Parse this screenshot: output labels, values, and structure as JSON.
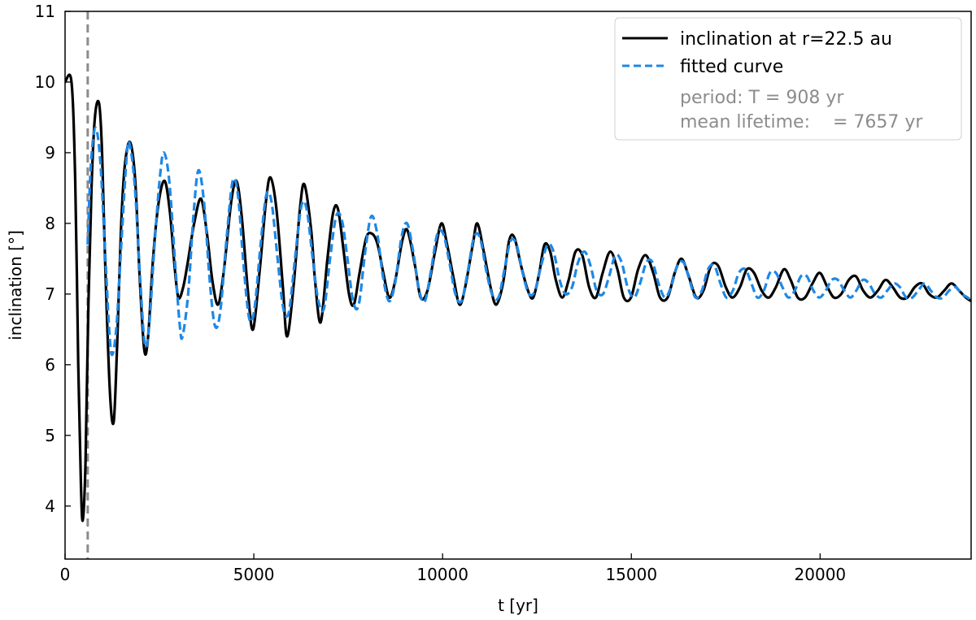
{
  "chart_data": {
    "type": "line",
    "xlabel": "t [yr]",
    "ylabel": "inclination [°]",
    "xlim": [
      0,
      24000
    ],
    "ylim": [
      3.25,
      11
    ],
    "xticks": [
      0,
      5000,
      10000,
      15000,
      20000
    ],
    "yticks": [
      4,
      5,
      6,
      7,
      8,
      9,
      10,
      11
    ],
    "grid": false,
    "legend_position": "top-right",
    "vline": {
      "x": 600,
      "color": "#8c8c8c",
      "style": "dashed"
    },
    "series": [
      {
        "name": "inclination at r=22.5 au",
        "color": "#000000",
        "style": "solid",
        "points": [
          [
            0,
            10.0
          ],
          [
            170,
            10.0
          ],
          [
            270,
            8.6
          ],
          [
            350,
            6.0
          ],
          [
            420,
            4.3
          ],
          [
            470,
            3.8
          ],
          [
            540,
            4.6
          ],
          [
            620,
            6.9
          ],
          [
            700,
            8.5
          ],
          [
            790,
            9.5
          ],
          [
            900,
            9.7
          ],
          [
            980,
            9.0
          ],
          [
            1070,
            7.3
          ],
          [
            1190,
            5.6
          ],
          [
            1290,
            5.2
          ],
          [
            1380,
            6.3
          ],
          [
            1480,
            7.9
          ],
          [
            1580,
            8.8
          ],
          [
            1720,
            9.15
          ],
          [
            1860,
            8.6
          ],
          [
            1980,
            7.2
          ],
          [
            2100,
            6.2
          ],
          [
            2200,
            6.4
          ],
          [
            2330,
            7.5
          ],
          [
            2480,
            8.3
          ],
          [
            2640,
            8.6
          ],
          [
            2780,
            8.15
          ],
          [
            2900,
            7.4
          ],
          [
            3000,
            6.95
          ],
          [
            3130,
            7.1
          ],
          [
            3250,
            7.45
          ],
          [
            3420,
            8.0
          ],
          [
            3600,
            8.35
          ],
          [
            3760,
            7.85
          ],
          [
            3900,
            7.2
          ],
          [
            4050,
            6.85
          ],
          [
            4200,
            7.3
          ],
          [
            4400,
            8.3
          ],
          [
            4540,
            8.6
          ],
          [
            4680,
            8.1
          ],
          [
            4850,
            7.0
          ],
          [
            4980,
            6.5
          ],
          [
            5150,
            7.3
          ],
          [
            5320,
            8.3
          ],
          [
            5440,
            8.65
          ],
          [
            5600,
            8.2
          ],
          [
            5770,
            7.1
          ],
          [
            5880,
            6.4
          ],
          [
            6050,
            7.1
          ],
          [
            6220,
            8.2
          ],
          [
            6340,
            8.55
          ],
          [
            6520,
            7.9
          ],
          [
            6620,
            7.2
          ],
          [
            6770,
            6.6
          ],
          [
            6950,
            7.5
          ],
          [
            7100,
            8.15
          ],
          [
            7230,
            8.2
          ],
          [
            7380,
            7.6
          ],
          [
            7520,
            7.0
          ],
          [
            7650,
            6.85
          ],
          [
            7800,
            7.3
          ],
          [
            7980,
            7.8
          ],
          [
            8140,
            7.85
          ],
          [
            8280,
            7.7
          ],
          [
            8430,
            7.3
          ],
          [
            8590,
            6.95
          ],
          [
            8750,
            7.2
          ],
          [
            8930,
            7.75
          ],
          [
            9070,
            7.9
          ],
          [
            9270,
            7.4
          ],
          [
            9420,
            6.95
          ],
          [
            9600,
            7.05
          ],
          [
            9800,
            7.6
          ],
          [
            9970,
            8.0
          ],
          [
            10120,
            7.7
          ],
          [
            10300,
            7.2
          ],
          [
            10450,
            6.85
          ],
          [
            10600,
            7.1
          ],
          [
            10800,
            7.7
          ],
          [
            10920,
            8.0
          ],
          [
            11090,
            7.6
          ],
          [
            11270,
            7.1
          ],
          [
            11420,
            6.85
          ],
          [
            11600,
            7.15
          ],
          [
            11760,
            7.75
          ],
          [
            11900,
            7.8
          ],
          [
            12080,
            7.4
          ],
          [
            12260,
            7.05
          ],
          [
            12400,
            6.95
          ],
          [
            12560,
            7.3
          ],
          [
            12700,
            7.7
          ],
          [
            12850,
            7.6
          ],
          [
            13000,
            7.2
          ],
          [
            13170,
            6.95
          ],
          [
            13340,
            7.2
          ],
          [
            13520,
            7.6
          ],
          [
            13700,
            7.55
          ],
          [
            13880,
            7.1
          ],
          [
            14060,
            6.95
          ],
          [
            14240,
            7.3
          ],
          [
            14440,
            7.6
          ],
          [
            14630,
            7.35
          ],
          [
            14800,
            6.95
          ],
          [
            14990,
            6.95
          ],
          [
            15180,
            7.35
          ],
          [
            15380,
            7.55
          ],
          [
            15580,
            7.3
          ],
          [
            15760,
            6.95
          ],
          [
            15960,
            6.95
          ],
          [
            16150,
            7.3
          ],
          [
            16330,
            7.5
          ],
          [
            16520,
            7.25
          ],
          [
            16720,
            6.95
          ],
          [
            16910,
            7.05
          ],
          [
            17110,
            7.4
          ],
          [
            17300,
            7.4
          ],
          [
            17500,
            7.1
          ],
          [
            17680,
            6.95
          ],
          [
            17880,
            7.1
          ],
          [
            18060,
            7.35
          ],
          [
            18250,
            7.3
          ],
          [
            18450,
            7.05
          ],
          [
            18640,
            6.95
          ],
          [
            18830,
            7.1
          ],
          [
            19040,
            7.35
          ],
          [
            19220,
            7.2
          ],
          [
            19410,
            6.95
          ],
          [
            19600,
            6.95
          ],
          [
            19800,
            7.15
          ],
          [
            19990,
            7.3
          ],
          [
            20190,
            7.1
          ],
          [
            20370,
            6.95
          ],
          [
            20560,
            7.0
          ],
          [
            20760,
            7.2
          ],
          [
            20950,
            7.25
          ],
          [
            21140,
            7.05
          ],
          [
            21330,
            6.95
          ],
          [
            21530,
            7.05
          ],
          [
            21730,
            7.2
          ],
          [
            21920,
            7.1
          ],
          [
            22120,
            6.95
          ],
          [
            22310,
            6.95
          ],
          [
            22510,
            7.1
          ],
          [
            22700,
            7.15
          ],
          [
            22890,
            7.0
          ],
          [
            23090,
            6.95
          ],
          [
            23290,
            7.05
          ],
          [
            23480,
            7.15
          ],
          [
            23680,
            7.05
          ],
          [
            23860,
            6.95
          ],
          [
            24000,
            6.9
          ]
        ]
      },
      {
        "name": "fitted curve",
        "color": "#1e88e5",
        "style": "dashed",
        "points": [
          [
            600,
            7.7
          ],
          [
            680,
            8.8
          ],
          [
            800,
            9.35
          ],
          [
            930,
            8.9
          ],
          [
            1060,
            7.6
          ],
          [
            1180,
            6.4
          ],
          [
            1260,
            6.15
          ],
          [
            1370,
            6.6
          ],
          [
            1500,
            7.8
          ],
          [
            1640,
            9.0
          ],
          [
            1720,
            9.1
          ],
          [
            1850,
            8.5
          ],
          [
            1990,
            7.2
          ],
          [
            2110,
            6.3
          ],
          [
            2220,
            6.5
          ],
          [
            2370,
            7.7
          ],
          [
            2520,
            8.7
          ],
          [
            2620,
            9.0
          ],
          [
            2760,
            8.6
          ],
          [
            2920,
            7.4
          ],
          [
            3040,
            6.55
          ],
          [
            3110,
            6.4
          ],
          [
            3260,
            7.0
          ],
          [
            3400,
            8.1
          ],
          [
            3530,
            8.75
          ],
          [
            3680,
            8.3
          ],
          [
            3830,
            7.2
          ],
          [
            3970,
            6.55
          ],
          [
            4110,
            6.75
          ],
          [
            4280,
            7.8
          ],
          [
            4440,
            8.6
          ],
          [
            4580,
            8.4
          ],
          [
            4730,
            7.4
          ],
          [
            4880,
            6.65
          ],
          [
            5020,
            6.8
          ],
          [
            5180,
            7.7
          ],
          [
            5330,
            8.4
          ],
          [
            5470,
            8.3
          ],
          [
            5630,
            7.5
          ],
          [
            5780,
            6.8
          ],
          [
            5930,
            6.75
          ],
          [
            6090,
            7.5
          ],
          [
            6260,
            8.25
          ],
          [
            6400,
            8.2
          ],
          [
            6560,
            7.5
          ],
          [
            6710,
            6.9
          ],
          [
            6860,
            6.8
          ],
          [
            7020,
            7.5
          ],
          [
            7180,
            8.1
          ],
          [
            7330,
            8.05
          ],
          [
            7480,
            7.5
          ],
          [
            7630,
            6.9
          ],
          [
            7780,
            6.85
          ],
          [
            7950,
            7.6
          ],
          [
            8110,
            8.1
          ],
          [
            8270,
            7.85
          ],
          [
            8420,
            7.25
          ],
          [
            8580,
            6.9
          ],
          [
            8740,
            7.15
          ],
          [
            8910,
            7.8
          ],
          [
            9060,
            8.0
          ],
          [
            9220,
            7.6
          ],
          [
            9380,
            7.05
          ],
          [
            9530,
            6.9
          ],
          [
            9700,
            7.35
          ],
          [
            9860,
            7.85
          ],
          [
            10020,
            7.85
          ],
          [
            10180,
            7.45
          ],
          [
            10340,
            7.0
          ],
          [
            10500,
            6.9
          ],
          [
            10660,
            7.3
          ],
          [
            10830,
            7.8
          ],
          [
            10990,
            7.8
          ],
          [
            11150,
            7.35
          ],
          [
            11310,
            7.0
          ],
          [
            11480,
            6.95
          ],
          [
            11640,
            7.35
          ],
          [
            11800,
            7.75
          ],
          [
            11960,
            7.7
          ],
          [
            12120,
            7.3
          ],
          [
            12290,
            7.0
          ],
          [
            12450,
            7.05
          ],
          [
            12610,
            7.4
          ],
          [
            12780,
            7.7
          ],
          [
            12940,
            7.6
          ],
          [
            13100,
            7.2
          ],
          [
            13260,
            7.0
          ],
          [
            13430,
            7.1
          ],
          [
            13590,
            7.45
          ],
          [
            13760,
            7.6
          ],
          [
            13920,
            7.4
          ],
          [
            14080,
            7.05
          ],
          [
            14250,
            7.0
          ],
          [
            14410,
            7.25
          ],
          [
            14580,
            7.55
          ],
          [
            14740,
            7.45
          ],
          [
            14900,
            7.1
          ],
          [
            15070,
            6.95
          ],
          [
            15230,
            7.15
          ],
          [
            15400,
            7.45
          ],
          [
            15560,
            7.45
          ],
          [
            15720,
            7.15
          ],
          [
            15890,
            6.95
          ],
          [
            16050,
            7.1
          ],
          [
            16220,
            7.4
          ],
          [
            16380,
            7.45
          ],
          [
            16540,
            7.2
          ],
          [
            16700,
            6.95
          ],
          [
            16870,
            7.05
          ],
          [
            17030,
            7.35
          ],
          [
            17200,
            7.4
          ],
          [
            17360,
            7.15
          ],
          [
            17520,
            6.95
          ],
          [
            17690,
            7.05
          ],
          [
            17850,
            7.3
          ],
          [
            18020,
            7.35
          ],
          [
            18180,
            7.15
          ],
          [
            18340,
            6.95
          ],
          [
            18510,
            7.05
          ],
          [
            18670,
            7.3
          ],
          [
            18830,
            7.3
          ],
          [
            19000,
            7.1
          ],
          [
            19160,
            6.95
          ],
          [
            19330,
            7.05
          ],
          [
            19490,
            7.25
          ],
          [
            19650,
            7.25
          ],
          [
            19820,
            7.05
          ],
          [
            19980,
            6.95
          ],
          [
            20150,
            7.05
          ],
          [
            20310,
            7.2
          ],
          [
            20470,
            7.2
          ],
          [
            20640,
            7.05
          ],
          [
            20800,
            6.95
          ],
          [
            20960,
            7.05
          ],
          [
            21130,
            7.2
          ],
          [
            21290,
            7.15
          ],
          [
            21460,
            7.0
          ],
          [
            21620,
            6.95
          ],
          [
            21780,
            7.05
          ],
          [
            21950,
            7.15
          ],
          [
            22110,
            7.1
          ],
          [
            22280,
            6.95
          ],
          [
            22440,
            6.95
          ],
          [
            22600,
            7.05
          ],
          [
            22770,
            7.15
          ],
          [
            22930,
            7.05
          ],
          [
            23100,
            6.95
          ],
          [
            23260,
            6.95
          ],
          [
            23420,
            7.05
          ],
          [
            23590,
            7.1
          ],
          [
            23750,
            7.0
          ],
          [
            23910,
            6.95
          ],
          [
            24000,
            6.9
          ]
        ]
      }
    ],
    "legend_notes": [
      "period: T = 908 yr",
      "mean lifetime:    = 7657 yr"
    ]
  }
}
